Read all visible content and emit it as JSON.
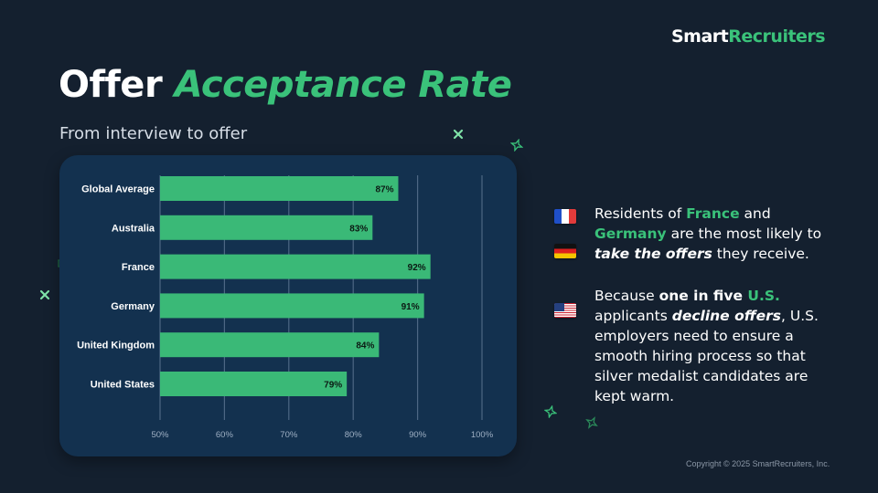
{
  "brand": {
    "name_part1": "Smart",
    "name_part2": "Recruiters"
  },
  "title": {
    "part1": "Offer",
    "part2": "Acceptance Rate"
  },
  "subtitle": "From interview to offer",
  "chart_data": {
    "type": "bar",
    "orientation": "horizontal",
    "categories": [
      "Global Average",
      "Australia",
      "France",
      "Germany",
      "United Kingdom",
      "United States"
    ],
    "values": [
      87,
      83,
      92,
      91,
      84,
      79
    ],
    "value_labels": [
      "87%",
      "83%",
      "92%",
      "91%",
      "84%",
      "79%"
    ],
    "xlim": [
      50,
      100
    ],
    "x_ticks": [
      50,
      60,
      70,
      80,
      90,
      100
    ],
    "x_tick_labels": [
      "50%",
      "60%",
      "70%",
      "80%",
      "90%",
      "100%"
    ],
    "grid": true,
    "bar_color": "#3ab977",
    "background_color": "#13314f"
  },
  "notes": {
    "first": {
      "p1": "Residents of ",
      "france": "France",
      "and": " and",
      "germany": "Germany",
      "p2": " are the most likely to ",
      "emph": "take the offers",
      "p3": " they receive.",
      "flags": [
        "flag-france-icon",
        "flag-germany-icon"
      ]
    },
    "second": {
      "p1": "Because ",
      "bold": "one in five ",
      "us": "U.S.",
      "p2": " applicants ",
      "emph": "decline offers",
      "p3": ", U.S. employers need to ensure a smooth hiring process so that silver medalist candidates are kept warm.",
      "flags": [
        "flag-usa-icon"
      ]
    }
  },
  "colors": {
    "accent": "#3ac27a",
    "background": "#14202f",
    "card": "#13314f"
  },
  "copyright": "Copyright © 2025 SmartRecruiters, Inc."
}
